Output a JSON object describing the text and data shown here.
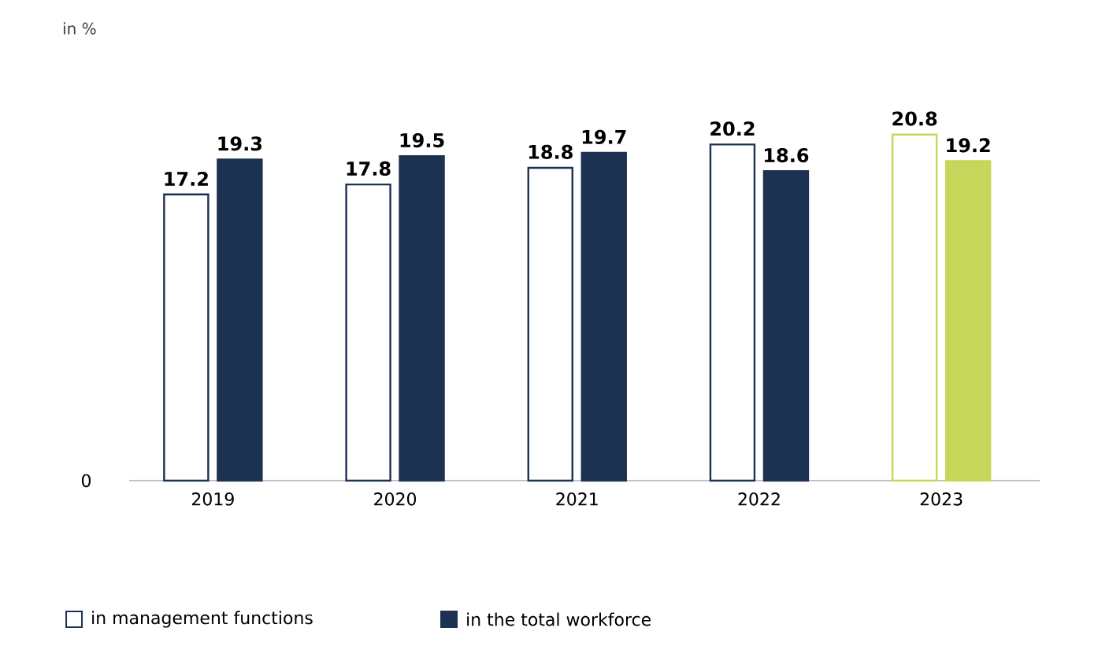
{
  "chart_data": {
    "type": "bar",
    "categories": [
      "2019",
      "2020",
      "2021",
      "2022",
      "2023"
    ],
    "series": [
      {
        "name": "in management functions",
        "colors": [
          "#1d3152",
          "#1d3152",
          "#1d3152",
          "#1d3152",
          "#c5d65a"
        ],
        "values": [
          17.2,
          17.8,
          18.8,
          20.2,
          20.8
        ],
        "value_labels": [
          "17.2",
          "17.8",
          "18.8",
          "20.2",
          "20.8"
        ]
      },
      {
        "name": "in the total workforce",
        "colors": [
          "#1d3152",
          "#1d3152",
          "#1d3152",
          "#1d3152",
          "#c5d65a"
        ],
        "values": [
          19.3,
          19.5,
          19.7,
          18.6,
          19.2
        ],
        "value_labels": [
          "19.3",
          "19.5",
          "19.7",
          "18.6",
          "19.2"
        ]
      }
    ],
    "annotations": [
      "in %",
      "0"
    ],
    "legend": "bottom left"
  }
}
